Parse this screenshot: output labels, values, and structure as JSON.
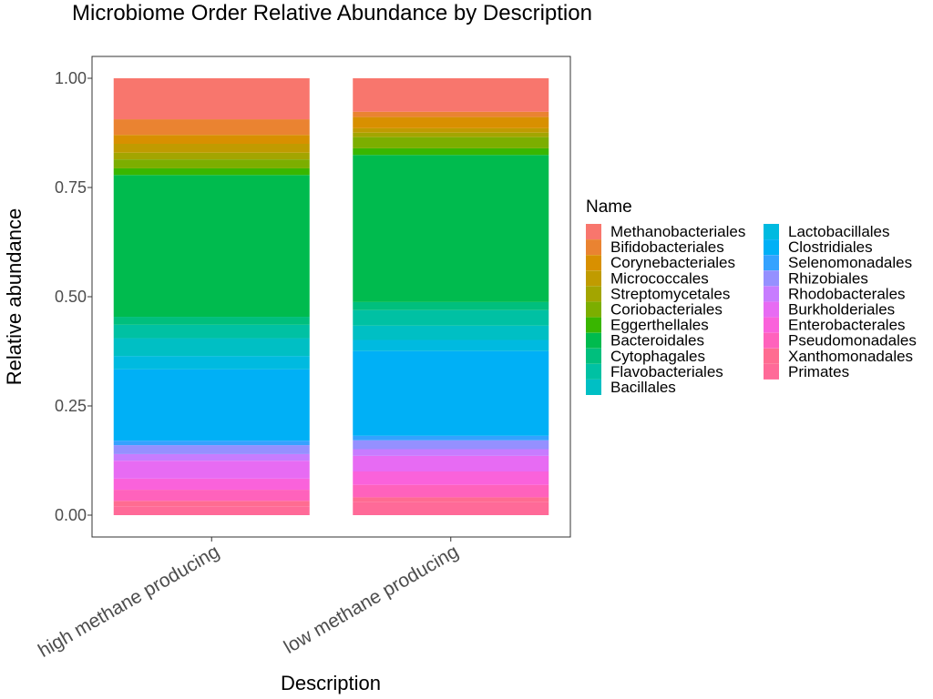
{
  "chart_data": {
    "type": "bar",
    "stacked": true,
    "title": "Microbiome Order Relative Abundance by Description",
    "xlabel": "Description",
    "ylabel": "Relative abundance",
    "ylim": [
      0,
      1
    ],
    "yticks": [
      "0.00",
      "0.25",
      "0.50",
      "0.75",
      "1.00"
    ],
    "categories": [
      "high methane producing",
      "low methane producing"
    ],
    "legend": {
      "title": "Name",
      "placement": "right"
    },
    "grid": false,
    "series": [
      {
        "name": "Methanobacteriales",
        "color": "#F8766D",
        "values": [
          0.092,
          0.075
        ]
      },
      {
        "name": "Bifidobacteriales",
        "color": "#EA8331",
        "values": [
          0.035,
          0.012
        ]
      },
      {
        "name": "Corynebacteriales",
        "color": "#D89000",
        "values": [
          0.02,
          0.025
        ]
      },
      {
        "name": "Micrococcales",
        "color": "#C09B00",
        "values": [
          0.02,
          0.01
        ]
      },
      {
        "name": "Streptomycetales",
        "color": "#A3A500",
        "values": [
          0.015,
          0.01
        ]
      },
      {
        "name": "Coriobacteriales",
        "color": "#7CAE00",
        "values": [
          0.02,
          0.025
        ]
      },
      {
        "name": "Eggerthellales",
        "color": "#39B600",
        "values": [
          0.015,
          0.015
        ]
      },
      {
        "name": "Bacteroidales",
        "color": "#00BB4E",
        "values": [
          0.318,
          0.33
        ]
      },
      {
        "name": "Cytophagales",
        "color": "#00BF7D",
        "values": [
          0.018,
          0.018
        ]
      },
      {
        "name": "Flavobacteriales",
        "color": "#00C1A3",
        "values": [
          0.03,
          0.035
        ]
      },
      {
        "name": "Bacillales",
        "color": "#00BFC4",
        "values": [
          0.04,
          0.032
        ]
      },
      {
        "name": "Lactobacillales",
        "color": "#00BAE0",
        "values": [
          0.03,
          0.025
        ]
      },
      {
        "name": "Clostridiales",
        "color": "#00B0F6",
        "values": [
          0.16,
          0.19
        ]
      },
      {
        "name": "Selenomonadales",
        "color": "#35A2FF",
        "values": [
          0.01,
          0.01
        ]
      },
      {
        "name": "Rhizobiales",
        "color": "#9590FF",
        "values": [
          0.02,
          0.02
        ]
      },
      {
        "name": "Rhodobacterales",
        "color": "#C77CFF",
        "values": [
          0.015,
          0.015
        ]
      },
      {
        "name": "Burkholderiales",
        "color": "#E76BF3",
        "values": [
          0.04,
          0.035
        ]
      },
      {
        "name": "Enterobacterales",
        "color": "#FA62DB",
        "values": [
          0.025,
          0.03
        ]
      },
      {
        "name": "Pseudomonadales",
        "color": "#FF62BC",
        "values": [
          0.025,
          0.028
        ]
      },
      {
        "name": "Xanthomonadales",
        "color": "#FF6C91",
        "values": [
          0.012,
          0.01
        ]
      },
      {
        "name": "Primates",
        "color": "#FF6A98",
        "values": [
          0.02,
          0.03
        ]
      }
    ]
  }
}
